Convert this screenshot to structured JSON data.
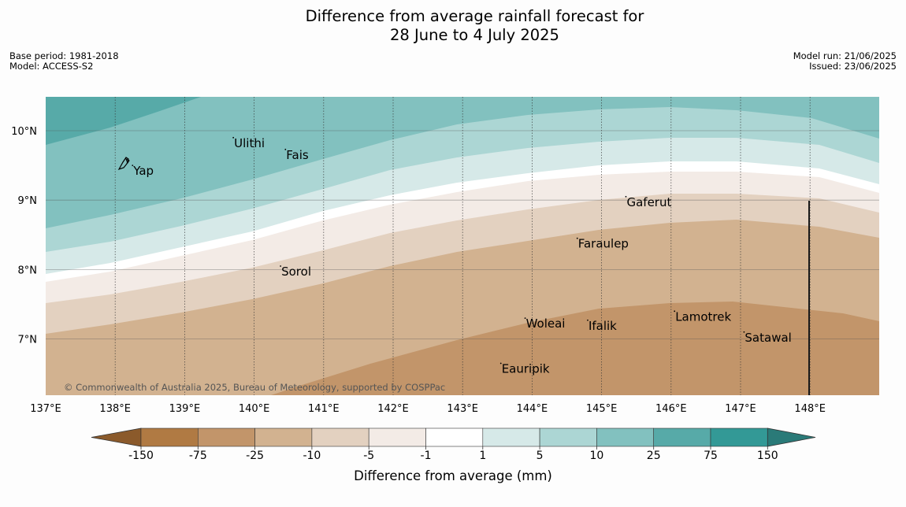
{
  "title": {
    "line1": "Difference from average rainfall forecast for",
    "line2": "28 June to 4 July 2025"
  },
  "meta_left": {
    "base_period": "Base period: 1981-2018",
    "model": "Model: ACCESS-S2"
  },
  "meta_right": {
    "model_run": "Model run: 21/06/2025",
    "issued": "Issued: 23/06/2025"
  },
  "copyright": "© Commonwealth of Australia 2025, Bureau of Meteorology, supported by COSPPac",
  "map_extent": {
    "lon": [
      137,
      149
    ],
    "lat": [
      6.2,
      10.5
    ]
  },
  "lon_ticks": [
    "137°E",
    "138°E",
    "139°E",
    "140°E",
    "141°E",
    "142°E",
    "143°E",
    "144°E",
    "145°E",
    "146°E",
    "147°E",
    "148°E"
  ],
  "lat_ticks": [
    "10°N",
    "9°N",
    "8°N",
    "7°N"
  ],
  "places": [
    {
      "name": "Ulithi",
      "lon": 139.7,
      "lat": 9.9
    },
    {
      "name": "Yap",
      "lon": 138.25,
      "lat": 9.5
    },
    {
      "name": "Fais",
      "lon": 140.45,
      "lat": 9.73
    },
    {
      "name": "Gaferut",
      "lon": 145.35,
      "lat": 9.05
    },
    {
      "name": "Faraulep",
      "lon": 144.65,
      "lat": 8.45
    },
    {
      "name": "Sorol",
      "lon": 140.38,
      "lat": 8.05
    },
    {
      "name": "Lamotrek",
      "lon": 146.05,
      "lat": 7.4
    },
    {
      "name": "Woleai",
      "lon": 143.9,
      "lat": 7.3
    },
    {
      "name": "Ifalik",
      "lon": 144.8,
      "lat": 7.27
    },
    {
      "name": "Satawal",
      "lon": 147.05,
      "lat": 7.1
    },
    {
      "name": "Eauripik",
      "lon": 143.55,
      "lat": 6.65
    }
  ],
  "colorbar": {
    "label": "Difference from average (mm)",
    "tick_labels": [
      "-150",
      "-75",
      "-25",
      "-10",
      "-5",
      "-1",
      "1",
      "5",
      "10",
      "25",
      "75",
      "150"
    ],
    "colors": [
      "#8b5a2b",
      "#b07a43",
      "#c2956a",
      "#d2b290",
      "#e3d1c0",
      "#f3ebe6",
      "#ffffff",
      "#d6e9e8",
      "#acd6d4",
      "#82c1bf",
      "#57aaa8",
      "#339996",
      "#2a7a78"
    ]
  }
}
